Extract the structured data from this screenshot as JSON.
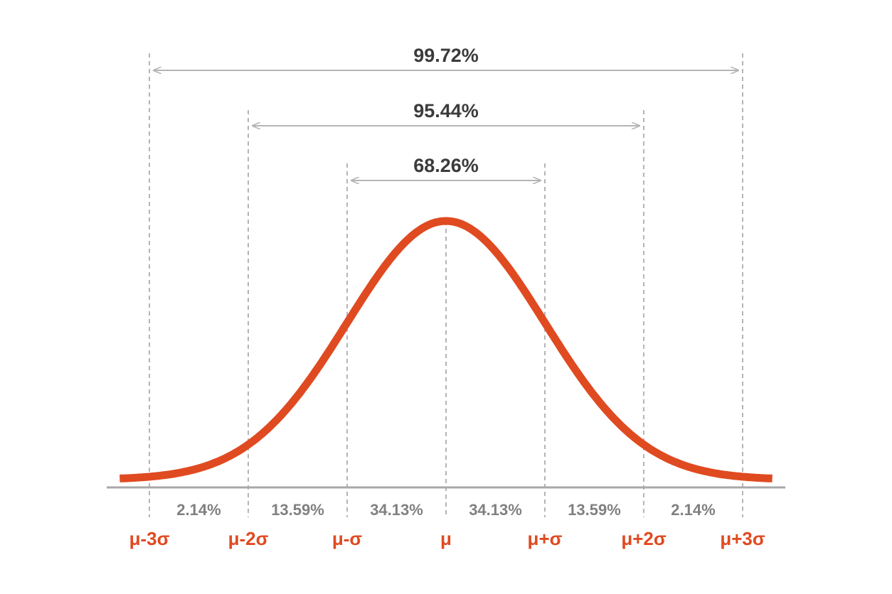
{
  "chart_data": {
    "type": "line",
    "colors": {
      "curve": "#e04a21",
      "guides": "#b5b5b5",
      "axis": "#a8a8a8",
      "range_text": "#3b3b3b",
      "percent_text": "#808080",
      "tick_text": "#e04a21"
    },
    "x_ticks": [
      {
        "sigma": -3,
        "label": "μ-3σ"
      },
      {
        "sigma": -2,
        "label": "μ-2σ"
      },
      {
        "sigma": -1,
        "label": "μ-σ"
      },
      {
        "sigma": 0,
        "label": "μ"
      },
      {
        "sigma": 1,
        "label": "μ+σ"
      },
      {
        "sigma": 2,
        "label": "μ+2σ"
      },
      {
        "sigma": 3,
        "label": "μ+3σ"
      }
    ],
    "segments": [
      {
        "from": -3,
        "to": -2,
        "label": "2.14%"
      },
      {
        "from": -2,
        "to": -1,
        "label": "13.59%"
      },
      {
        "from": -1,
        "to": 0,
        "label": "34.13%"
      },
      {
        "from": 0,
        "to": 1,
        "label": "34.13%"
      },
      {
        "from": 1,
        "to": 2,
        "label": "13.59%"
      },
      {
        "from": 2,
        "to": 3,
        "label": "2.14%"
      }
    ],
    "ranges": [
      {
        "sigma": 3,
        "label": "99.72%"
      },
      {
        "sigma": 2,
        "label": "95.44%"
      },
      {
        "sigma": 1,
        "label": "68.26%"
      }
    ],
    "xlim": [
      -3.3,
      3.3
    ],
    "grid": false
  }
}
